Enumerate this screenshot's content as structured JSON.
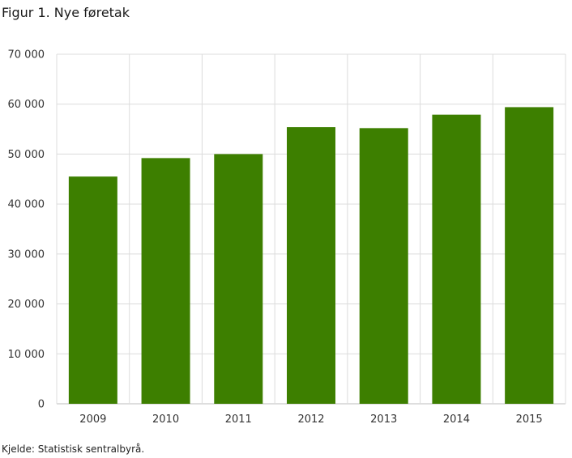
{
  "title": "Figur 1. Nye føretak",
  "source": "Kjelde: Statistisk sentralbyrå.",
  "colors": {
    "bar": "#3d7f00",
    "grid": "#dcdcdc",
    "axis": "#bdbdbd"
  },
  "chart_data": {
    "type": "bar",
    "categories": [
      "2009",
      "2010",
      "2011",
      "2012",
      "2013",
      "2014",
      "2015"
    ],
    "values": [
      45500,
      49200,
      50000,
      55400,
      55200,
      57900,
      59400
    ],
    "ylim": [
      0,
      70000
    ],
    "yticks": [
      0,
      10000,
      20000,
      30000,
      40000,
      50000,
      60000,
      70000
    ],
    "ytick_labels": [
      "0",
      "10 000",
      "20 000",
      "30 000",
      "40 000",
      "50 000",
      "60 000",
      "70 000"
    ],
    "grid": true,
    "legend": "none"
  }
}
